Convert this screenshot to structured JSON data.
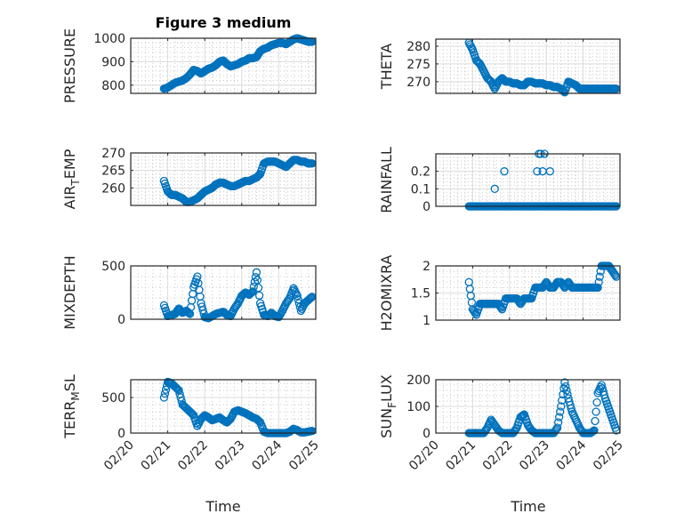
{
  "chart_data": {
    "type": "scatter",
    "title": "Figure 3 medium",
    "xlabel": "Time",
    "x_tick_labels": [
      "02/20",
      "02/21",
      "02/22",
      "02/23",
      "02/24",
      "02/25"
    ],
    "x_unit": "days since 02/20",
    "xlim": [
      0,
      5
    ],
    "x_start": 0.9,
    "x_step": 0.1,
    "marker_color": "#0072BD",
    "grid": "on (major + minor)",
    "panels": [
      {
        "ylabel": "PRESSURE",
        "ylim": [
          765,
          1000
        ],
        "yticks": [
          800,
          900,
          1000
        ],
        "values": [
          785,
          790,
          800,
          810,
          815,
          820,
          830,
          845,
          865,
          860,
          850,
          860,
          870,
          875,
          885,
          900,
          905,
          890,
          880,
          885,
          890,
          900,
          905,
          915,
          915,
          920,
          945,
          955,
          960,
          970,
          975,
          980,
          980,
          975,
          985,
          995,
          1000,
          995,
          990,
          985,
          985
        ]
      },
      {
        "ylabel": "THETA",
        "ylim": [
          266.7,
          282
        ],
        "yticks": [
          270,
          275,
          280
        ],
        "values": [
          281,
          279,
          276,
          275,
          273,
          271,
          270,
          268,
          270,
          271,
          270,
          270,
          269.5,
          269.5,
          269,
          269,
          270,
          270,
          269.5,
          269.5,
          269.5,
          269,
          269,
          268.5,
          268.5,
          268,
          267,
          270,
          269.5,
          269,
          268,
          268,
          268,
          268,
          268,
          268,
          268,
          268,
          268,
          268,
          268
        ]
      },
      {
        "ylabel": "AIR_TEMP",
        "ylim": [
          255,
          270
        ],
        "yticks": [
          260,
          265,
          270
        ],
        "values": [
          262,
          259,
          258,
          258,
          257.5,
          257,
          256,
          256,
          256.5,
          257,
          258,
          259,
          259.5,
          260,
          261,
          261.5,
          261.5,
          261,
          260.5,
          260.5,
          261,
          261.5,
          262,
          262,
          262.5,
          263,
          264,
          267,
          267.5,
          267.5,
          267.5,
          267,
          266.5,
          266,
          267,
          268,
          268,
          267.5,
          267.5,
          267,
          267
        ]
      },
      {
        "ylabel": "RAINFALL",
        "ylim": [
          0,
          0.3
        ],
        "yticks": [
          0,
          0.1,
          0.2
        ],
        "values": [
          0,
          0,
          0,
          0,
          0,
          0,
          0,
          0,
          0,
          0,
          0,
          0,
          0,
          0,
          0,
          0,
          0,
          0,
          0,
          0,
          0,
          0,
          0,
          0,
          0,
          0,
          0,
          0,
          0,
          0,
          0,
          0,
          0,
          0,
          0,
          0,
          0,
          0,
          0,
          0,
          0
        ],
        "extra_points": [
          [
            1.6,
            0.1
          ],
          [
            1.86,
            0.2
          ],
          [
            2.75,
            0.2
          ],
          [
            2.8,
            0.3
          ],
          [
            2.85,
            0.3
          ],
          [
            2.9,
            0.2
          ],
          [
            2.95,
            0.3
          ],
          [
            3.1,
            0.2
          ]
        ]
      },
      {
        "ylabel": "MIXDEPTH",
        "ylim": [
          0,
          500
        ],
        "yticks": [
          0,
          500
        ],
        "values": [
          130,
          30,
          40,
          50,
          100,
          60,
          80,
          50,
          300,
          400,
          150,
          20,
          10,
          30,
          50,
          60,
          70,
          40,
          30,
          100,
          150,
          220,
          250,
          230,
          260,
          440,
          150,
          40,
          30,
          60,
          30,
          20,
          80,
          150,
          200,
          290,
          220,
          80,
          150,
          180,
          210
        ]
      },
      {
        "ylabel": "H2OMIXRA",
        "ylim": [
          1,
          2
        ],
        "yticks": [
          1,
          1.5,
          2
        ],
        "values": [
          1.7,
          1.2,
          1.1,
          1.3,
          1.3,
          1.3,
          1.3,
          1.3,
          1.3,
          1.2,
          1.4,
          1.4,
          1.4,
          1.4,
          1.3,
          1.4,
          1.4,
          1.4,
          1.6,
          1.6,
          1.6,
          1.7,
          1.6,
          1.6,
          1.7,
          1.7,
          1.6,
          1.7,
          1.6,
          1.6,
          1.6,
          1.6,
          1.6,
          1.6,
          1.6,
          1.6,
          2.0,
          2.0,
          2.0,
          1.9,
          1.8
        ]
      },
      {
        "ylabel": "TERR_MSL",
        "ylim": [
          0,
          750
        ],
        "yticks": [
          0,
          500
        ],
        "values": [
          500,
          720,
          700,
          650,
          600,
          400,
          350,
          300,
          250,
          100,
          200,
          250,
          220,
          180,
          200,
          220,
          180,
          150,
          200,
          300,
          320,
          300,
          280,
          250,
          220,
          200,
          150,
          20,
          0,
          0,
          0,
          0,
          0,
          0,
          20,
          60,
          40,
          10,
          10,
          20,
          30
        ]
      },
      {
        "ylabel": "SUN_FLUX",
        "ylim": [
          0,
          200
        ],
        "yticks": [
          0,
          100,
          200
        ],
        "values": [
          0,
          0,
          0,
          0,
          0,
          20,
          50,
          30,
          10,
          0,
          0,
          0,
          0,
          20,
          60,
          70,
          30,
          10,
          0,
          0,
          0,
          0,
          0,
          0,
          20,
          100,
          190,
          130,
          80,
          50,
          20,
          0,
          0,
          0,
          10,
          150,
          180,
          130,
          90,
          50,
          10
        ]
      }
    ]
  }
}
